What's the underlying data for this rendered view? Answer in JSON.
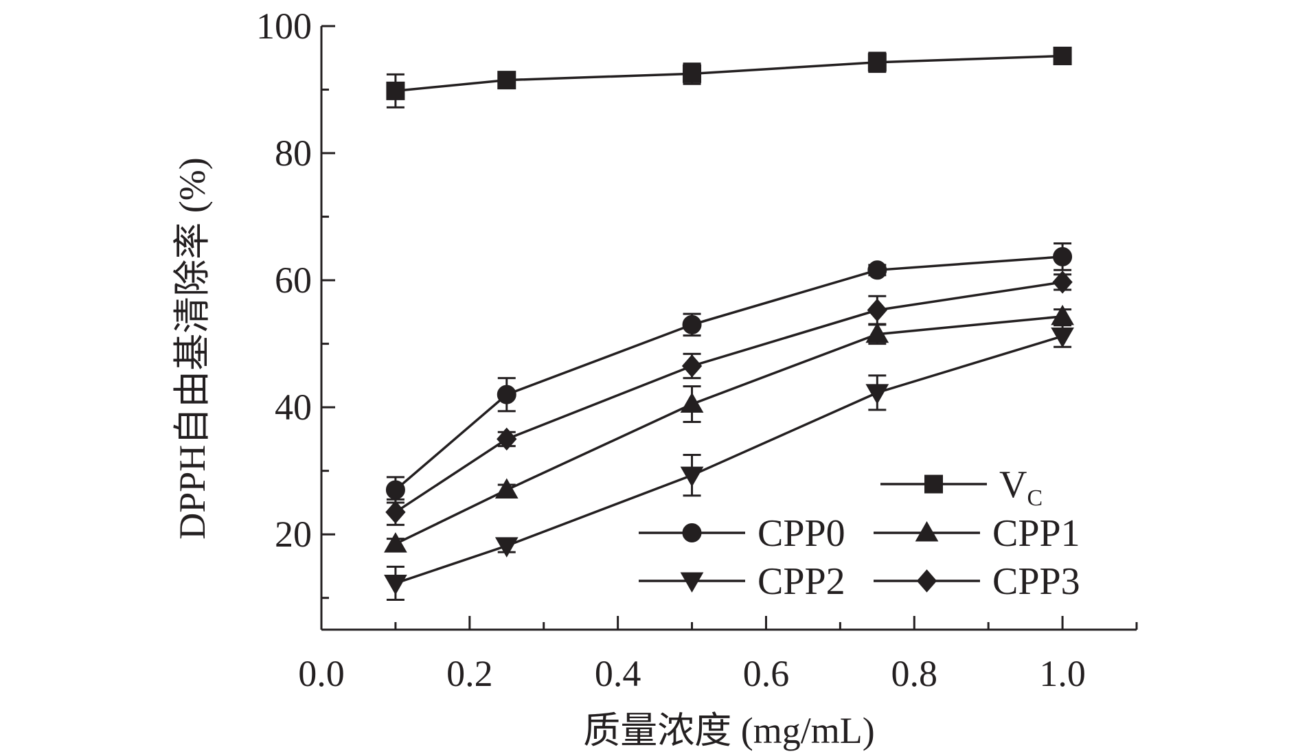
{
  "chart_data": {
    "type": "line",
    "title": "",
    "xlabel": "质量浓度 (mg/mL)",
    "ylabel": "DPPH自由基清除率 (%)",
    "xlim": [
      0.0,
      1.1
    ],
    "ylim": [
      5,
      100
    ],
    "x_ticks": [
      0.0,
      0.2,
      0.4,
      0.6,
      0.8,
      1.0
    ],
    "x_tick_labels": [
      "0.0",
      "0.2",
      "0.4",
      "0.6",
      "0.8",
      "1.0"
    ],
    "x_minor_ticks": [
      0.1,
      0.3,
      0.5,
      0.7,
      0.9,
      1.1
    ],
    "y_ticks": [
      20,
      40,
      60,
      80,
      100
    ],
    "y_tick_labels": [
      "20",
      "40",
      "60",
      "80",
      "100"
    ],
    "y_minor_ticks": [
      10,
      30,
      50,
      70,
      90
    ],
    "x": [
      0.1,
      0.25,
      0.5,
      0.75,
      1.0
    ],
    "series": [
      {
        "name": "V",
        "subscript": "C",
        "marker": "square",
        "values": [
          89.8,
          91.5,
          92.5,
          94.3,
          95.3
        ],
        "errors": [
          2.6,
          1.0,
          1.6,
          1.5,
          0.8
        ]
      },
      {
        "name": "CPP0",
        "marker": "circle",
        "values": [
          27.0,
          42.0,
          53.0,
          61.6,
          63.7
        ],
        "errors": [
          2.0,
          2.6,
          1.7,
          0.8,
          2.1
        ]
      },
      {
        "name": "CPP1",
        "marker": "triangle-up",
        "values": [
          18.5,
          27.0,
          40.5,
          51.5,
          54.3
        ],
        "errors": [
          0.8,
          0.8,
          2.8,
          1.5,
          1.1
        ]
      },
      {
        "name": "CPP2",
        "marker": "triangle-down",
        "values": [
          12.3,
          18.2,
          29.3,
          42.3,
          51.2
        ],
        "errors": [
          2.6,
          1.0,
          3.2,
          2.7,
          1.7
        ]
      },
      {
        "name": "CPP3",
        "marker": "diamond",
        "values": [
          23.5,
          35.0,
          46.5,
          55.3,
          59.7
        ],
        "errors": [
          2.0,
          1.1,
          1.9,
          2.2,
          1.2
        ]
      }
    ],
    "legend": {
      "placement": "lower-right",
      "layout": "V_C on first row, then two columns"
    },
    "colors": {
      "ink": "#231f20",
      "background": "#ffffff"
    }
  }
}
